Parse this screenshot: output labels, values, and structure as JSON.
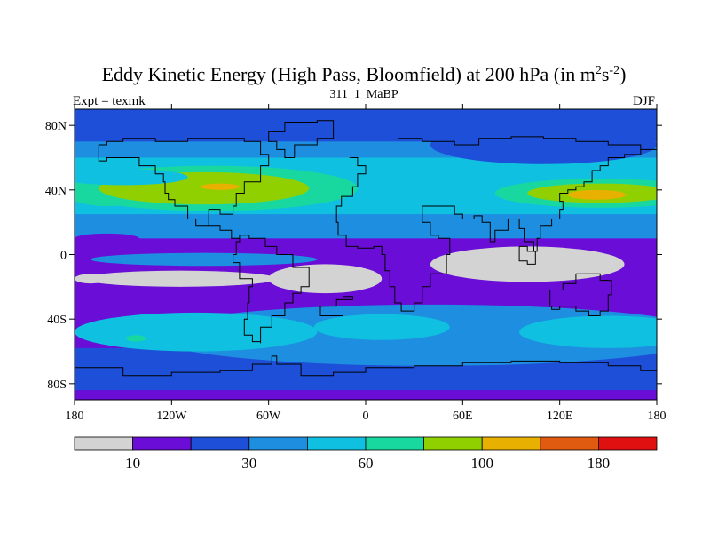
{
  "chart_data": {
    "type": "heatmap",
    "title": "Eddy Kinetic Energy (High Pass, Bloomfield) at 200 hPa (in m",
    "title_unit_sup1": "2",
    "title_unit_s": "s",
    "title_unit_sup2": "-2",
    "title_close": ")",
    "subtitle": "311_1_MaBP",
    "left_label": "Expt = texmk",
    "right_label": "DJF",
    "x_ticks": [
      "180",
      "120W",
      "60W",
      "0",
      "60E",
      "120E",
      "180"
    ],
    "y_ticks": [
      "80N",
      "40N",
      "0",
      "40S",
      "80S"
    ],
    "x_range": [
      -180,
      180
    ],
    "y_range": [
      -90,
      90
    ],
    "colorbar": {
      "colors": [
        "#d3d3d3",
        "#6a0dd6",
        "#1e4fd8",
        "#1e8fe0",
        "#10c0e0",
        "#18d8a0",
        "#90d000",
        "#e8b000",
        "#e05a10",
        "#e01010"
      ],
      "labels": [
        "10",
        "30",
        "60",
        "100",
        "180"
      ]
    },
    "fields": [
      {
        "type": "rect",
        "lon": [
          -180,
          180
        ],
        "lat": [
          -90,
          90
        ],
        "level": 1
      },
      {
        "type": "rect",
        "lon": [
          -180,
          180
        ],
        "lat": [
          -84,
          -58
        ],
        "level": 2
      },
      {
        "type": "ellipse",
        "lon": 40,
        "lat": -50,
        "rx": 175,
        "ry": 19,
        "level": 3
      },
      {
        "type": "ellipse",
        "lon": -105,
        "lat": -48,
        "rx": 75,
        "ry": 12,
        "level": 4
      },
      {
        "type": "ellipse",
        "lon": 10,
        "lat": -45,
        "rx": 42,
        "ry": 8,
        "level": 4
      },
      {
        "type": "ellipse",
        "lon": 150,
        "lat": -48,
        "rx": 55,
        "ry": 10,
        "level": 4
      },
      {
        "type": "ellipse",
        "lon": -142,
        "lat": -52,
        "rx": 6,
        "ry": 2,
        "level": 5
      },
      {
        "type": "rect",
        "lon": [
          -180,
          180
        ],
        "lat": [
          10,
          90
        ],
        "level": 3
      },
      {
        "type": "ellipse",
        "lon": -160,
        "lat": 10,
        "rx": 20,
        "ry": 3,
        "level": 1
      },
      {
        "type": "rect",
        "lon": [
          -180,
          180
        ],
        "lat": [
          25,
          60
        ],
        "level": 4
      },
      {
        "type": "ellipse",
        "lon": -95,
        "lat": 41,
        "rx": 90,
        "ry": 14,
        "level": 5
      },
      {
        "type": "ellipse",
        "lon": 145,
        "lat": 38,
        "rx": 65,
        "ry": 9,
        "level": 5
      },
      {
        "type": "ellipse",
        "lon": -160,
        "lat": 38,
        "rx": 25,
        "ry": 8,
        "level": 5
      },
      {
        "type": "ellipse",
        "lon": -100,
        "lat": 41,
        "rx": 65,
        "ry": 10,
        "level": 6
      },
      {
        "type": "ellipse",
        "lon": 145,
        "lat": 38,
        "rx": 45,
        "ry": 6,
        "level": 6
      },
      {
        "type": "ellipse",
        "lon": -90,
        "lat": 42,
        "rx": 12,
        "ry": 2,
        "level": 7
      },
      {
        "type": "ellipse",
        "lon": 143,
        "lat": 37,
        "rx": 18,
        "ry": 3,
        "level": 7
      },
      {
        "type": "rect",
        "lon": [
          -180,
          180
        ],
        "lat": [
          70,
          90
        ],
        "level": 2
      },
      {
        "type": "ellipse",
        "lon": 110,
        "lat": 68,
        "rx": 70,
        "ry": 12,
        "level": 2
      },
      {
        "type": "ellipse",
        "lon": -150,
        "lat": 48,
        "rx": 40,
        "ry": 5,
        "level": 4
      },
      {
        "type": "ellipse",
        "lon": -100,
        "lat": -3,
        "rx": 70,
        "ry": 4,
        "level": 3
      },
      {
        "type": "ellipse",
        "lon": -115,
        "lat": -15,
        "rx": 60,
        "ry": 5,
        "level": 0
      },
      {
        "type": "ellipse",
        "lon": -25,
        "lat": -15,
        "rx": 35,
        "ry": 9,
        "level": 0
      },
      {
        "type": "ellipse",
        "lon": 100,
        "lat": -6,
        "rx": 60,
        "ry": 11,
        "level": 0
      },
      {
        "type": "ellipse",
        "lon": -170,
        "lat": -15,
        "rx": 10,
        "ry": 3,
        "level": 0
      }
    ],
    "coastlines": [
      [
        [
          20,
          72
        ],
        [
          35,
          70
        ],
        [
          55,
          68
        ],
        [
          70,
          72
        ],
        [
          90,
          73
        ],
        [
          110,
          72
        ],
        [
          130,
          70
        ],
        [
          150,
          68
        ],
        [
          170,
          65
        ],
        [
          180,
          65
        ]
      ],
      [
        [
          -10,
          60
        ],
        [
          -5,
          55
        ],
        [
          0,
          50
        ],
        [
          -5,
          42
        ],
        [
          -8,
          36
        ],
        [
          -15,
          30
        ],
        [
          -18,
          20
        ],
        [
          -17,
          12
        ],
        [
          -12,
          5
        ],
        [
          -5,
          4
        ],
        [
          5,
          5
        ],
        [
          10,
          0
        ],
        [
          12,
          -10
        ],
        [
          15,
          -20
        ],
        [
          18,
          -30
        ],
        [
          22,
          -35
        ],
        [
          30,
          -30
        ],
        [
          35,
          -20
        ],
        [
          40,
          -12
        ],
        [
          50,
          0
        ],
        [
          52,
          10
        ],
        [
          45,
          12
        ],
        [
          40,
          20
        ],
        [
          35,
          30
        ],
        [
          45,
          30
        ],
        [
          55,
          25
        ],
        [
          60,
          22
        ],
        [
          67,
          24
        ],
        [
          72,
          20
        ],
        [
          77,
          8
        ],
        [
          80,
          15
        ],
        [
          88,
          22
        ],
        [
          95,
          16
        ],
        [
          98,
          8
        ],
        [
          104,
          2
        ],
        [
          106,
          10
        ],
        [
          108,
          18
        ],
        [
          115,
          22
        ],
        [
          120,
          28
        ],
        [
          122,
          33
        ],
        [
          120,
          38
        ],
        [
          125,
          40
        ],
        [
          130,
          42
        ],
        [
          135,
          45
        ],
        [
          140,
          52
        ],
        [
          145,
          55
        ],
        [
          150,
          60
        ],
        [
          160,
          62
        ],
        [
          170,
          65
        ]
      ],
      [
        [
          130,
          -12
        ],
        [
          140,
          -12
        ],
        [
          145,
          -16
        ],
        [
          152,
          -25
        ],
        [
          150,
          -35
        ],
        [
          145,
          -38
        ],
        [
          138,
          -35
        ],
        [
          130,
          -32
        ],
        [
          120,
          -34
        ],
        [
          115,
          -32
        ],
        [
          114,
          -22
        ],
        [
          122,
          -18
        ],
        [
          130,
          -12
        ]
      ],
      [
        [
          -160,
          70
        ],
        [
          -150,
          72
        ],
        [
          -130,
          70
        ],
        [
          -110,
          72
        ],
        [
          -90,
          72
        ],
        [
          -75,
          70
        ],
        [
          -65,
          62
        ],
        [
          -60,
          55
        ],
        [
          -65,
          45
        ],
        [
          -75,
          38
        ],
        [
          -80,
          30
        ],
        [
          -82,
          25
        ],
        [
          -90,
          28
        ],
        [
          -97,
          25
        ],
        [
          -97,
          18
        ],
        [
          -90,
          15
        ],
        [
          -83,
          10
        ],
        [
          -78,
          8
        ],
        [
          -80,
          0
        ],
        [
          -82,
          -5
        ],
        [
          -78,
          -15
        ],
        [
          -70,
          -20
        ],
        [
          -72,
          -30
        ],
        [
          -73,
          -40
        ],
        [
          -75,
          -50
        ],
        [
          -70,
          -54
        ],
        [
          -65,
          -55
        ],
        [
          -65,
          -45
        ],
        [
          -58,
          -38
        ],
        [
          -50,
          -30
        ],
        [
          -45,
          -24
        ],
        [
          -40,
          -20
        ],
        [
          -35,
          -8
        ],
        [
          -45,
          0
        ],
        [
          -55,
          5
        ],
        [
          -62,
          10
        ],
        [
          -72,
          12
        ],
        [
          -78,
          8
        ]
      ],
      [
        [
          -97,
          18
        ],
        [
          -105,
          22
        ],
        [
          -110,
          30
        ],
        [
          -118,
          34
        ],
        [
          -122,
          38
        ],
        [
          -124,
          45
        ],
        [
          -125,
          50
        ],
        [
          -130,
          55
        ],
        [
          -140,
          60
        ],
        [
          -150,
          60
        ],
        [
          -160,
          58
        ],
        [
          -165,
          62
        ],
        [
          -165,
          68
        ],
        [
          -160,
          70
        ]
      ],
      [
        [
          -180,
          -70
        ],
        [
          -150,
          -75
        ],
        [
          -120,
          -73
        ],
        [
          -90,
          -72
        ],
        [
          -70,
          -68
        ],
        [
          -58,
          -63
        ],
        [
          -55,
          -68
        ],
        [
          -40,
          -75
        ],
        [
          -20,
          -73
        ],
        [
          0,
          -70
        ],
        [
          30,
          -69
        ],
        [
          60,
          -67
        ],
        [
          90,
          -66
        ],
        [
          120,
          -67
        ],
        [
          150,
          -69
        ],
        [
          170,
          -72
        ],
        [
          180,
          -72
        ]
      ],
      [
        [
          -44,
          60
        ],
        [
          -50,
          65
        ],
        [
          -55,
          70
        ],
        [
          -60,
          76
        ],
        [
          -50,
          82
        ],
        [
          -30,
          83
        ],
        [
          -20,
          80
        ],
        [
          -20,
          72
        ],
        [
          -30,
          68
        ],
        [
          -44,
          60
        ]
      ],
      [
        [
          95,
          5
        ],
        [
          100,
          2
        ],
        [
          105,
          -6
        ],
        [
          100,
          -4
        ],
        [
          95,
          5
        ]
      ],
      [
        [
          -28,
          -32
        ],
        [
          -18,
          -28
        ],
        [
          -8,
          -26
        ],
        [
          -14,
          -38
        ],
        [
          -28,
          -32
        ]
      ]
    ]
  }
}
